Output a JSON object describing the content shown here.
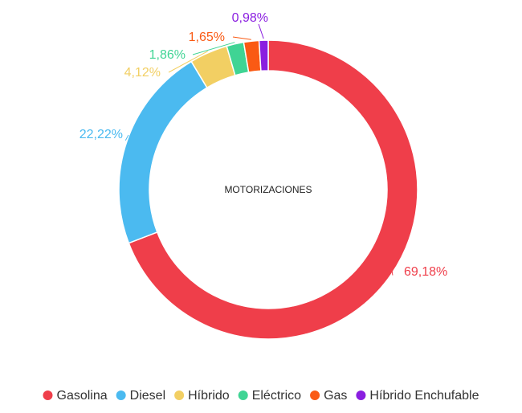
{
  "chart_data": {
    "type": "pie",
    "title": "",
    "center_label": "MOTORIZACIONES",
    "legend_position": "bottom",
    "series": [
      {
        "name": "Gasolina",
        "value": 69.18,
        "label": "69,18%",
        "color": "#ef3e4a"
      },
      {
        "name": "Diesel",
        "value": 22.22,
        "label": "22,22%",
        "color": "#4bbaf0"
      },
      {
        "name": "Híbrido",
        "value": 4.12,
        "label": "4,12%",
        "color": "#f2cf63"
      },
      {
        "name": "Eléctrico",
        "value": 1.86,
        "label": "1,86%",
        "color": "#3fd494"
      },
      {
        "name": "Gas",
        "value": 1.65,
        "label": "1,65%",
        "color": "#fa5a14"
      },
      {
        "name": "Híbrido Enchufable",
        "value": 0.98,
        "label": "0,98%",
        "color": "#8a1ee0"
      }
    ]
  }
}
